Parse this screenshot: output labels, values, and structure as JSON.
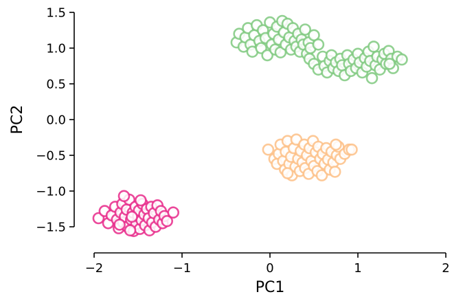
{
  "chart_data": {
    "type": "scatter",
    "xlabel": "PC1",
    "ylabel": "PC2",
    "xlim": [
      -2,
      2
    ],
    "ylim": [
      -1.5,
      1.5
    ],
    "xticks": [
      "−2",
      "−1",
      "0",
      "1",
      "2"
    ],
    "yticks": [
      "−1.5",
      "−1.0",
      "−0.5",
      "0.0",
      "0.5",
      "1.0",
      "1.5"
    ],
    "grid": false,
    "marker": "hollow-circle",
    "series": [
      {
        "color": "#e7298a",
        "points": [
          [
            -1.95,
            -1.38
          ],
          [
            -1.88,
            -1.28
          ],
          [
            -1.84,
            -1.45
          ],
          [
            -1.8,
            -1.34
          ],
          [
            -1.76,
            -1.22
          ],
          [
            -1.74,
            -1.4
          ],
          [
            -1.72,
            -1.52
          ],
          [
            -1.7,
            -1.3
          ],
          [
            -1.68,
            -1.18
          ],
          [
            -1.67,
            -1.44
          ],
          [
            -1.65,
            -1.36
          ],
          [
            -1.63,
            -1.26
          ],
          [
            -1.62,
            -1.5
          ],
          [
            -1.6,
            -1.12
          ],
          [
            -1.58,
            -1.4
          ],
          [
            -1.56,
            -1.3
          ],
          [
            -1.55,
            -1.56
          ],
          [
            -1.53,
            -1.22
          ],
          [
            -1.52,
            -1.46
          ],
          [
            -1.5,
            -1.35
          ],
          [
            -1.49,
            -1.27
          ],
          [
            -1.48,
            -1.53
          ],
          [
            -1.46,
            -1.41
          ],
          [
            -1.45,
            -1.18
          ],
          [
            -1.43,
            -1.33
          ],
          [
            -1.42,
            -1.48
          ],
          [
            -1.4,
            -1.25
          ],
          [
            -1.38,
            -1.38
          ],
          [
            -1.37,
            -1.55
          ],
          [
            -1.35,
            -1.22
          ],
          [
            -1.34,
            -1.44
          ],
          [
            -1.32,
            -1.31
          ],
          [
            -1.3,
            -1.5
          ],
          [
            -1.28,
            -1.2
          ],
          [
            -1.26,
            -1.4
          ],
          [
            -1.24,
            -1.28
          ],
          [
            -1.22,
            -1.45
          ],
          [
            -1.2,
            -1.35
          ],
          [
            -1.17,
            -1.42
          ],
          [
            -1.1,
            -1.3
          ],
          [
            -1.66,
            -1.07
          ],
          [
            -1.71,
            -1.47
          ],
          [
            -1.59,
            -1.55
          ],
          [
            -1.47,
            -1.13
          ],
          [
            -1.57,
            -1.36
          ]
        ]
      },
      {
        "color": "#fdc086",
        "points": [
          [
            -0.02,
            -0.42
          ],
          [
            0.05,
            -0.55
          ],
          [
            0.08,
            -0.62
          ],
          [
            0.1,
            -0.48
          ],
          [
            0.12,
            -0.35
          ],
          [
            0.15,
            -0.58
          ],
          [
            0.17,
            -0.7
          ],
          [
            0.18,
            -0.45
          ],
          [
            0.2,
            -0.3
          ],
          [
            0.22,
            -0.62
          ],
          [
            0.24,
            -0.52
          ],
          [
            0.25,
            -0.78
          ],
          [
            0.27,
            -0.4
          ],
          [
            0.29,
            -0.66
          ],
          [
            0.3,
            -0.28
          ],
          [
            0.32,
            -0.55
          ],
          [
            0.34,
            -0.72
          ],
          [
            0.35,
            -0.44
          ],
          [
            0.37,
            -0.6
          ],
          [
            0.39,
            -0.35
          ],
          [
            0.4,
            -0.68
          ],
          [
            0.42,
            -0.5
          ],
          [
            0.44,
            -0.76
          ],
          [
            0.45,
            -0.4
          ],
          [
            0.47,
            -0.58
          ],
          [
            0.49,
            -0.3
          ],
          [
            0.5,
            -0.65
          ],
          [
            0.52,
            -0.46
          ],
          [
            0.54,
            -0.72
          ],
          [
            0.55,
            -0.38
          ],
          [
            0.57,
            -0.55
          ],
          [
            0.59,
            -0.78
          ],
          [
            0.6,
            -0.48
          ],
          [
            0.62,
            -0.62
          ],
          [
            0.64,
            -0.4
          ],
          [
            0.66,
            -0.56
          ],
          [
            0.68,
            -0.7
          ],
          [
            0.7,
            -0.45
          ],
          [
            0.72,
            -0.6
          ],
          [
            0.74,
            -0.73
          ],
          [
            0.76,
            -0.5
          ],
          [
            0.78,
            -0.38
          ],
          [
            0.8,
            -0.55
          ],
          [
            0.85,
            -0.48
          ],
          [
            0.9,
            -0.42
          ],
          [
            0.93,
            -0.42
          ],
          [
            0.75,
            -0.35
          ],
          [
            0.2,
            -0.75
          ]
        ]
      },
      {
        "color": "#7fc97f",
        "points": [
          [
            -0.38,
            1.08
          ],
          [
            -0.35,
            1.2
          ],
          [
            -0.3,
            1.02
          ],
          [
            -0.28,
            1.15
          ],
          [
            -0.25,
            1.28
          ],
          [
            -0.22,
            1.05
          ],
          [
            -0.2,
            0.95
          ],
          [
            -0.18,
            1.18
          ],
          [
            -0.15,
            1.32
          ],
          [
            -0.12,
            1.1
          ],
          [
            -0.1,
            1.0
          ],
          [
            -0.08,
            1.25
          ],
          [
            -0.05,
            1.14
          ],
          [
            -0.03,
            0.9
          ],
          [
            0.0,
            1.36
          ],
          [
            0.02,
            1.05
          ],
          [
            0.04,
            1.2
          ],
          [
            0.06,
            0.98
          ],
          [
            0.08,
            1.3
          ],
          [
            0.1,
            1.12
          ],
          [
            0.12,
            0.94
          ],
          [
            0.14,
            1.38
          ],
          [
            0.16,
            1.22
          ],
          [
            0.18,
            1.05
          ],
          [
            0.2,
            1.34
          ],
          [
            0.22,
            1.15
          ],
          [
            0.24,
            0.98
          ],
          [
            0.26,
            1.28
          ],
          [
            0.28,
            1.1
          ],
          [
            0.3,
            1.02
          ],
          [
            0.32,
            1.2
          ],
          [
            0.34,
            0.95
          ],
          [
            0.36,
            1.12
          ],
          [
            0.38,
            1.05
          ],
          [
            0.4,
            1.26
          ],
          [
            0.42,
            0.92
          ],
          [
            0.44,
            1.08
          ],
          [
            0.46,
            1.0
          ],
          [
            0.5,
            1.18
          ],
          [
            0.55,
            1.05
          ],
          [
            0.45,
            0.85
          ],
          [
            0.5,
            0.78
          ],
          [
            0.55,
            0.7
          ],
          [
            0.6,
            0.88
          ],
          [
            0.62,
            0.75
          ],
          [
            0.65,
            0.66
          ],
          [
            0.68,
            0.82
          ],
          [
            0.7,
            0.9
          ],
          [
            0.72,
            0.72
          ],
          [
            0.75,
            0.8
          ],
          [
            0.78,
            0.68
          ],
          [
            0.8,
            0.85
          ],
          [
            0.82,
            0.76
          ],
          [
            0.85,
            0.62
          ],
          [
            0.88,
            0.9
          ],
          [
            0.9,
            0.78
          ],
          [
            0.92,
            0.68
          ],
          [
            0.95,
            0.84
          ],
          [
            0.98,
            0.72
          ],
          [
            1.0,
            0.92
          ],
          [
            1.02,
            0.8
          ],
          [
            1.05,
            0.66
          ],
          [
            1.08,
            0.86
          ],
          [
            1.1,
            0.74
          ],
          [
            1.12,
            0.95
          ],
          [
            1.14,
            0.82
          ],
          [
            1.16,
            0.58
          ],
          [
            1.18,
            1.02
          ],
          [
            1.2,
            0.76
          ],
          [
            1.22,
            0.88
          ],
          [
            1.25,
            0.7
          ],
          [
            1.28,
            0.84
          ],
          [
            1.3,
            0.92
          ],
          [
            1.32,
            0.78
          ],
          [
            1.35,
            0.96
          ],
          [
            1.38,
            0.85
          ],
          [
            1.4,
            0.72
          ],
          [
            1.45,
            0.88
          ],
          [
            1.5,
            0.84
          ],
          [
            1.36,
            0.78
          ]
        ]
      }
    ]
  }
}
